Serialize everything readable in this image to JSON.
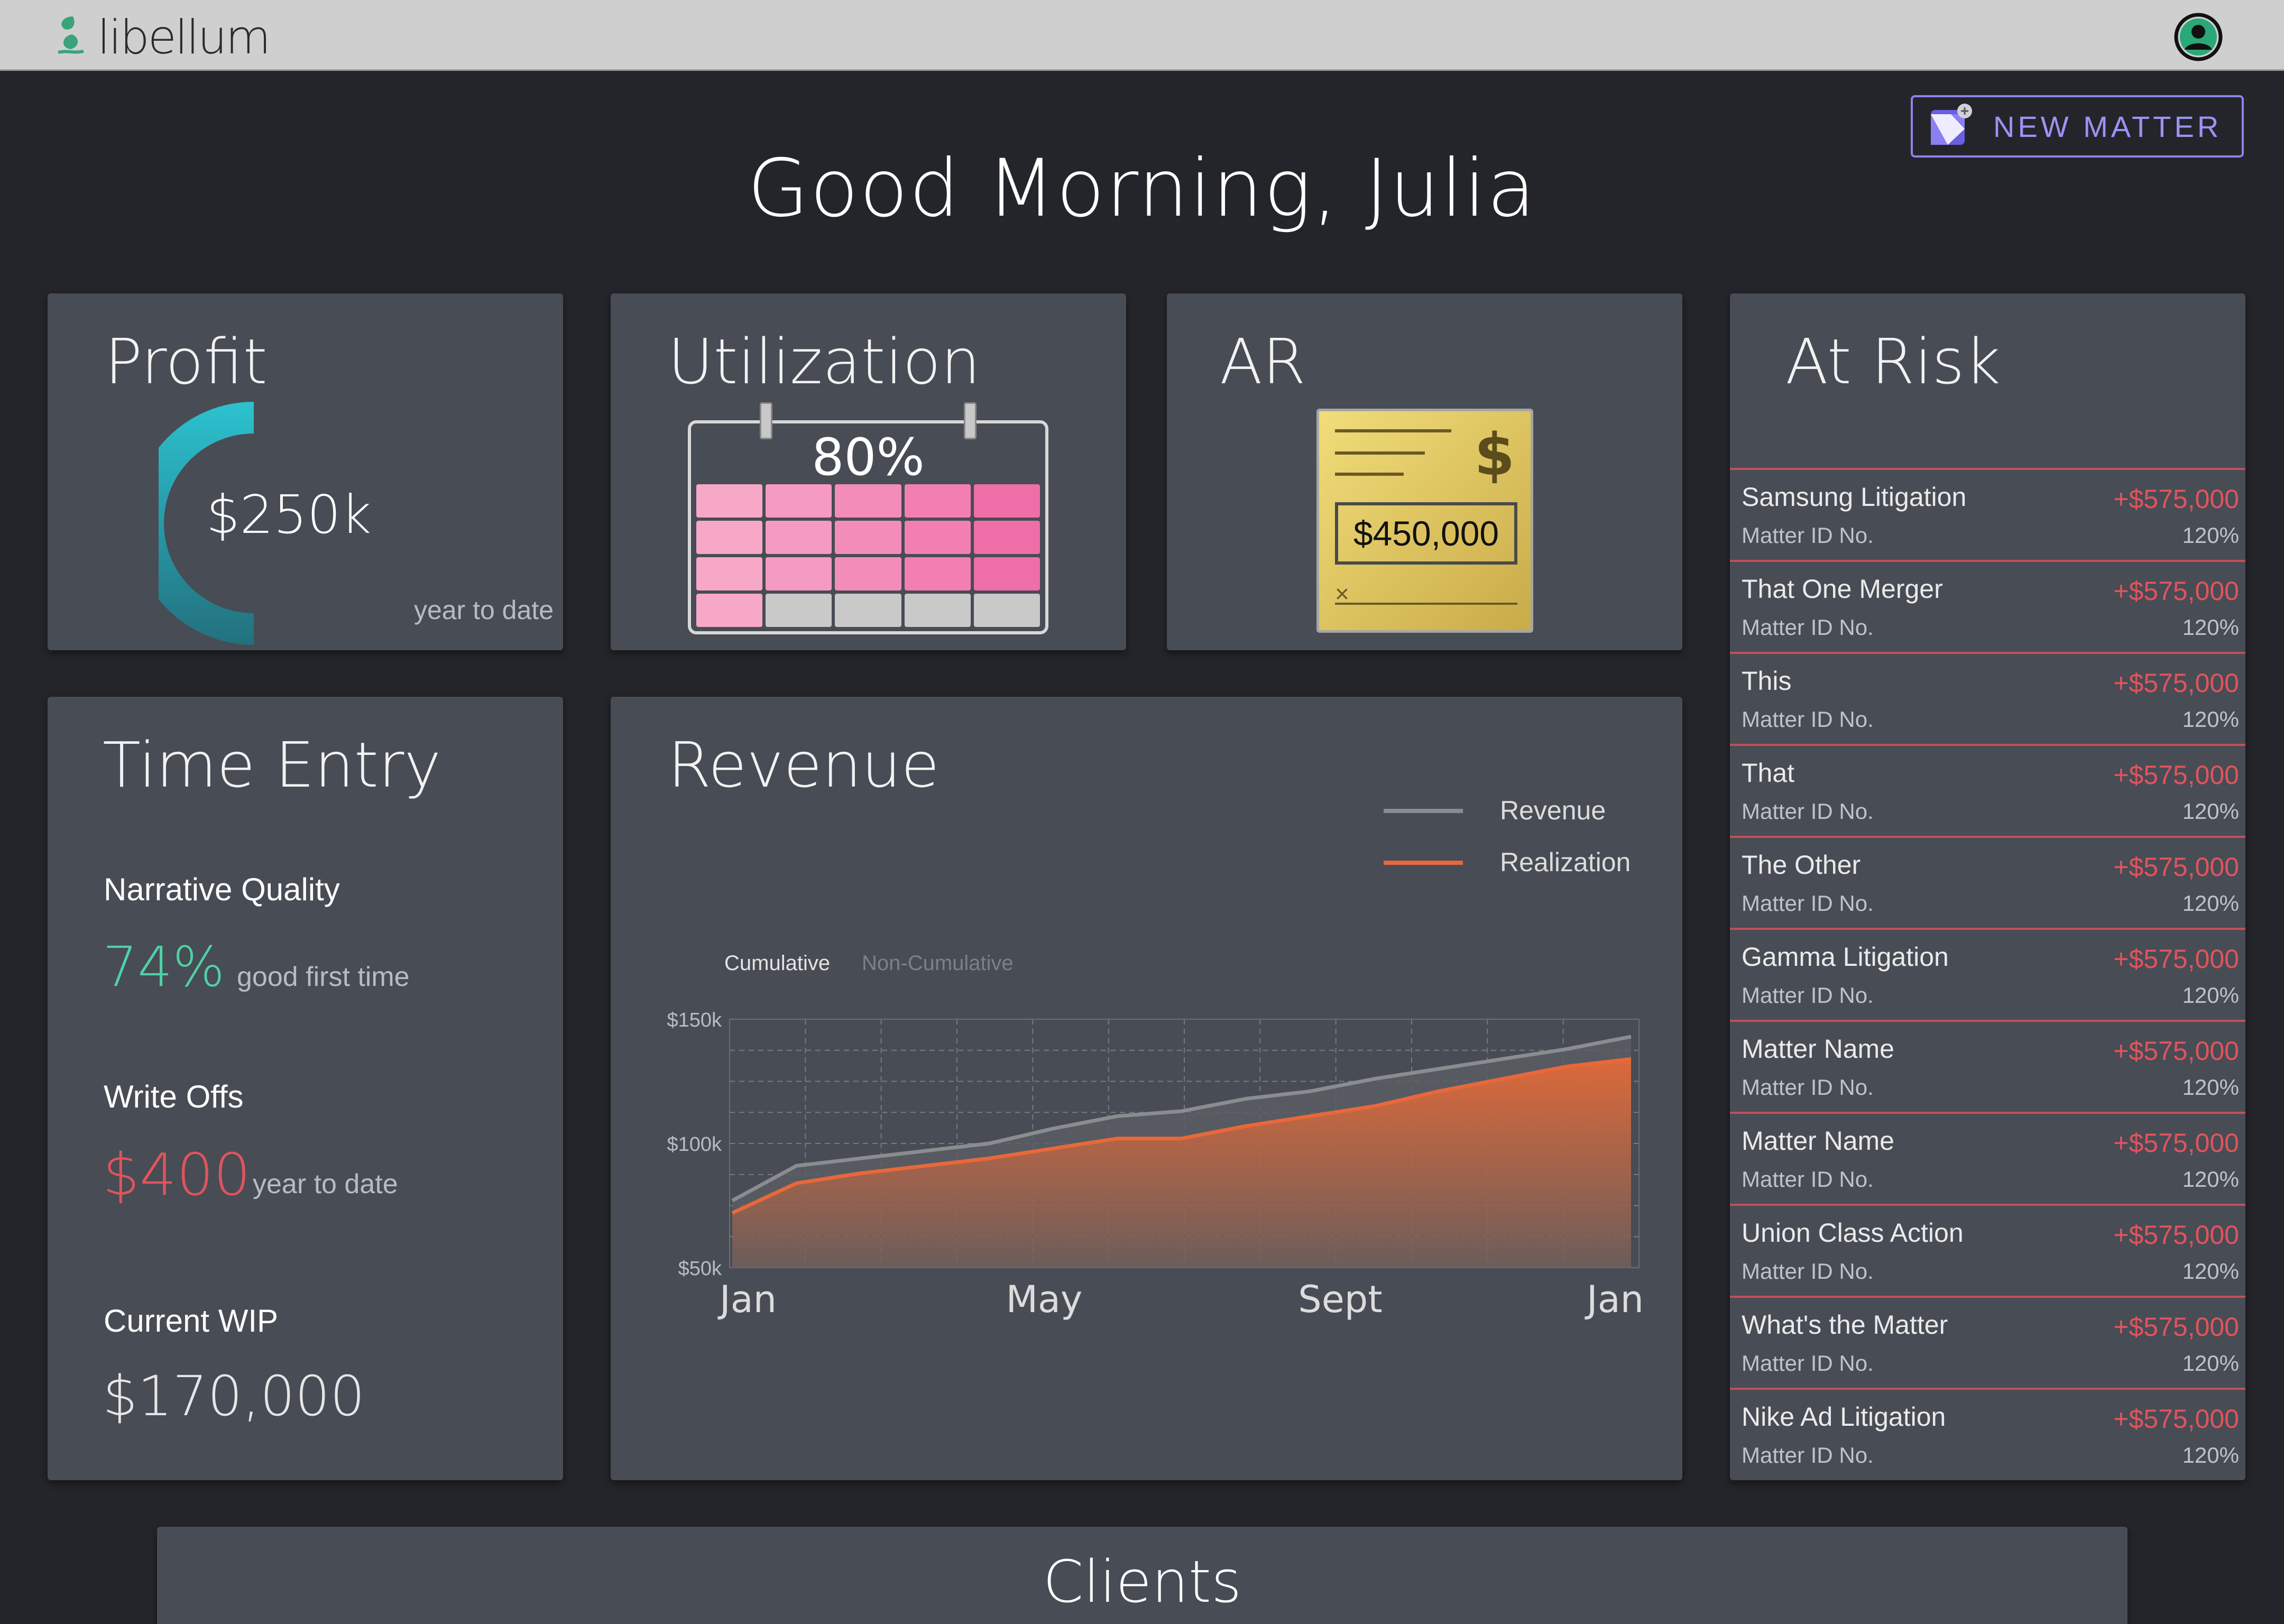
{
  "app": {
    "logo_text": "libellum"
  },
  "header": {
    "new_matter_label": "NEW MATTER",
    "greeting": "Good Morning, Julia"
  },
  "profit": {
    "title": "Profit",
    "value": "$250k",
    "caption": "year to date"
  },
  "utilization": {
    "title": "Utilization",
    "percent_label": "80%",
    "fill_fraction": 0.8
  },
  "ar": {
    "title": "AR",
    "check_amount": "$450,000",
    "dollar_sign": "$",
    "sign_mark": "×"
  },
  "time_entry": {
    "title": "Time Entry",
    "narrative_label": "Narrative Quality",
    "narrative_value": "74%",
    "narrative_caption": "good first time",
    "writeoffs_label": "Write Offs",
    "writeoffs_value": "$400",
    "writeoffs_caption": "year to date",
    "wip_label": "Current WIP",
    "wip_value": "$170,000"
  },
  "revenue": {
    "title": "Revenue",
    "toggle_cumulative": "Cumulative",
    "toggle_noncumulative": "Non-Cumulative",
    "legend": [
      {
        "name": "Revenue",
        "color": "#8a8c90"
      },
      {
        "name": "Realization",
        "color": "#e8683a"
      }
    ]
  },
  "chart_data": {
    "type": "area",
    "x_labels": [
      "Jan",
      "May",
      "Sept",
      "Jan"
    ],
    "y_ticks": [
      "$150k",
      "$100k",
      "$50k"
    ],
    "ylim": [
      50,
      150
    ],
    "grid": true,
    "legend_position": "top-right",
    "series": [
      {
        "name": "Revenue",
        "values": [
          77,
          91,
          94,
          97,
          100,
          106,
          111,
          113,
          118,
          121,
          126,
          130,
          134,
          138,
          143
        ]
      },
      {
        "name": "Realization",
        "values": [
          72,
          84,
          88,
          91,
          94,
          98,
          102,
          102,
          107,
          111,
          115,
          121,
          126,
          131,
          134
        ]
      }
    ]
  },
  "at_risk": {
    "title": "At Risk",
    "items": [
      {
        "name": "Samsung Litigation",
        "amount": "+$575,000",
        "id_label": "Matter ID No.",
        "pct": "120%"
      },
      {
        "name": "That One Merger",
        "amount": "+$575,000",
        "id_label": "Matter ID No.",
        "pct": "120%"
      },
      {
        "name": "This",
        "amount": "+$575,000",
        "id_label": "Matter ID No.",
        "pct": "120%"
      },
      {
        "name": "That",
        "amount": "+$575,000",
        "id_label": "Matter ID No.",
        "pct": "120%"
      },
      {
        "name": "The Other",
        "amount": "+$575,000",
        "id_label": "Matter ID No.",
        "pct": "120%"
      },
      {
        "name": "Gamma Litigation",
        "amount": "+$575,000",
        "id_label": "Matter ID No.",
        "pct": "120%"
      },
      {
        "name": "Matter Name",
        "amount": "+$575,000",
        "id_label": "Matter ID No.",
        "pct": "120%"
      },
      {
        "name": "Matter Name",
        "amount": "+$575,000",
        "id_label": "Matter ID No.",
        "pct": "120%"
      },
      {
        "name": "Union Class Action",
        "amount": "+$575,000",
        "id_label": "Matter ID No.",
        "pct": "120%"
      },
      {
        "name": "What's the Matter",
        "amount": "+$575,000",
        "id_label": "Matter ID No.",
        "pct": "120%"
      },
      {
        "name": "Nike Ad Litigation",
        "amount": "+$575,000",
        "id_label": "Matter ID No.",
        "pct": "120%"
      }
    ]
  },
  "clients": {
    "title": "Clients"
  },
  "colors": {
    "accent": "#8b84ee",
    "teal": "#2ab3c4",
    "positive": "#4fd1a5",
    "negative": "#e0545e",
    "realization": "#e8683a"
  },
  "icons": {
    "user": "user-circle-icon",
    "new_matter": "document-plus-icon",
    "logo": "leaf-logo-icon"
  }
}
